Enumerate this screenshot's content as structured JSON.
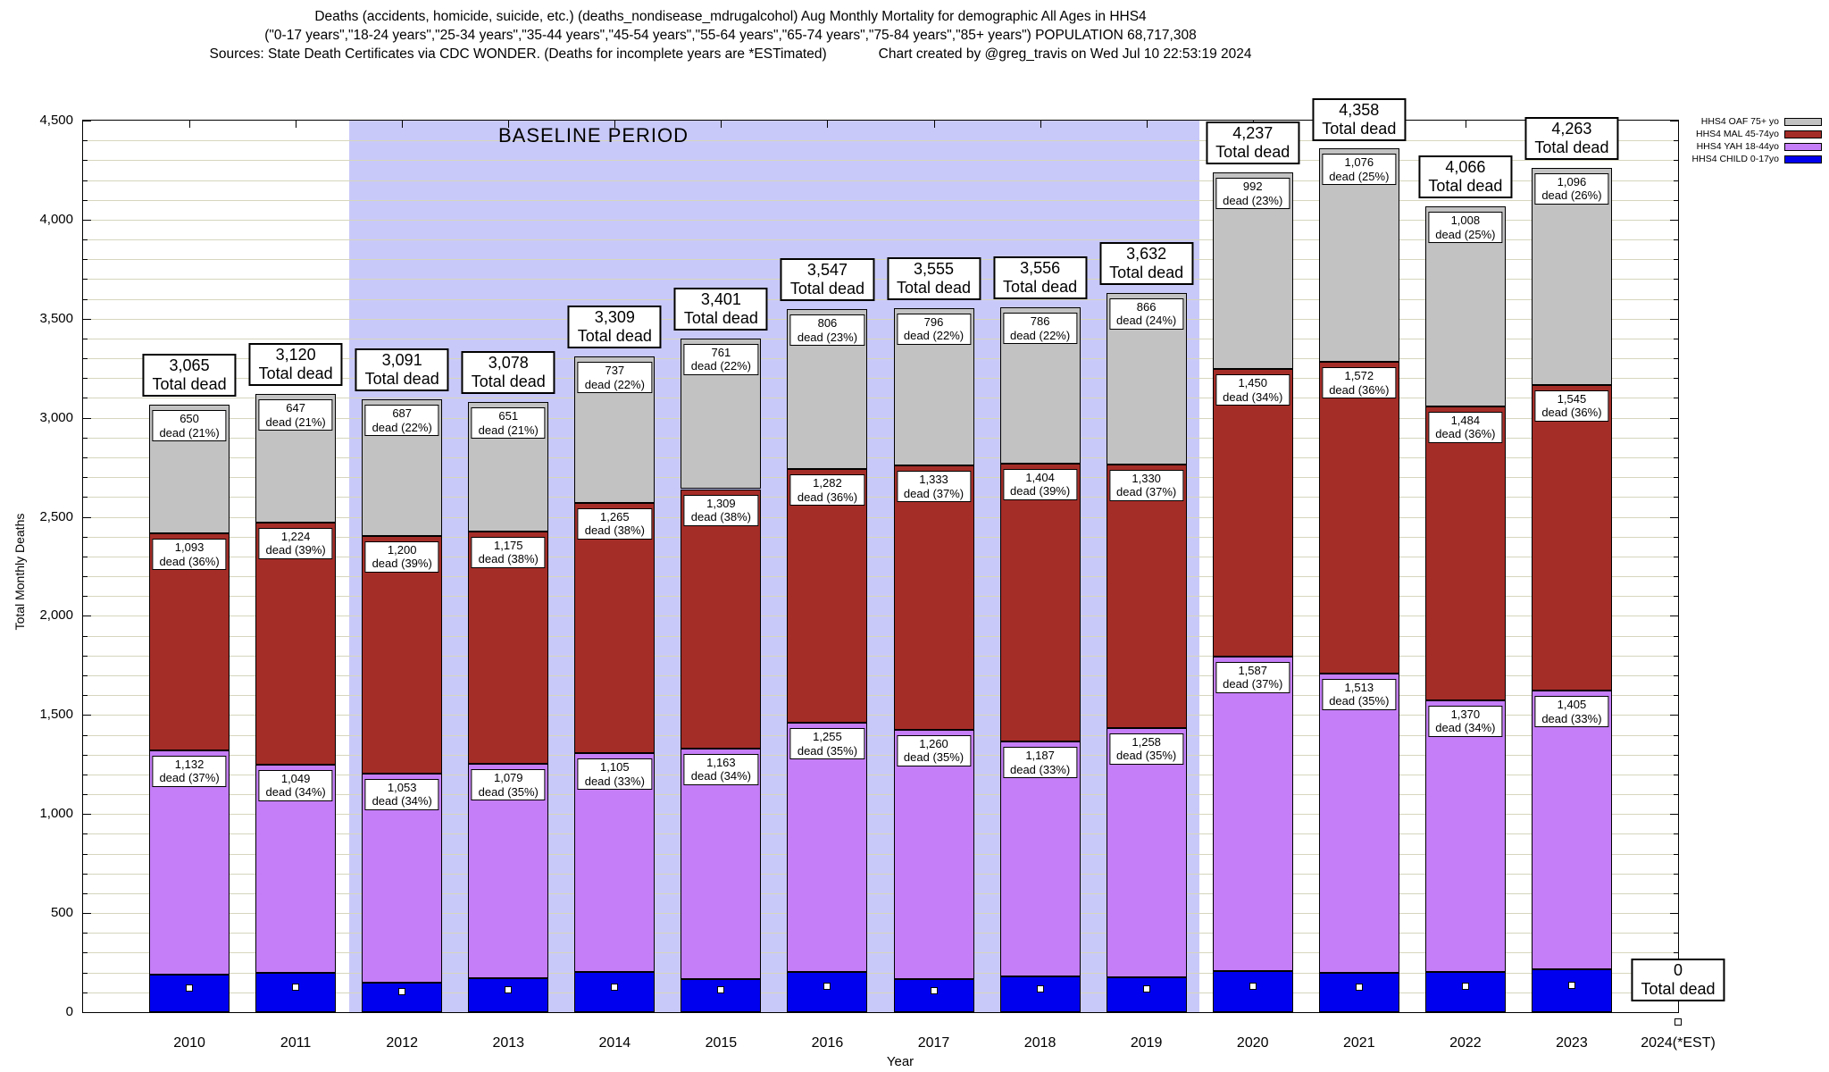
{
  "title": {
    "line1": "Deaths (accidents, homicide, suicide, etc.) (deaths_nondisease_mdrugalcohol) Aug Monthly Mortality for demographic All Ages in HHS4",
    "line2": "(\"0-17 years\",\"18-24 years\",\"25-34 years\",\"35-44 years\",\"45-54 years\",\"55-64 years\",\"65-74 years\",\"75-84 years\",\"85+ years\") POPULATION 68,717,308",
    "line3_left": "Sources: State Death Certificates via CDC WONDER. (Deaths for incomplete years are *ESTimated)",
    "line3_right": "Chart created by @greg_travis on Wed Jul 10 22:53:19 2024"
  },
  "axes": {
    "y_label": "Total Monthly Deaths",
    "x_label": "Year"
  },
  "legend": {
    "items": [
      {
        "label": "HHS4 OAF 75+ yo",
        "color": "#c2c2c2"
      },
      {
        "label": "HHS4 MAL 45-74yo",
        "color": "#a52d28"
      },
      {
        "label": "HHS4 YAH 18-44yo",
        "color": "#c57ef7"
      },
      {
        "label": "HHS4 CHILD 0-17yo",
        "color": "#0000ee"
      }
    ]
  },
  "baseline": {
    "label": "BASELINE PERIOD"
  },
  "chart_data": {
    "type": "bar",
    "stacked": true,
    "title": "Aug Monthly Mortality for demographic All Ages in HHS4",
    "xlabel": "Year",
    "ylabel": "Total Monthly Deaths",
    "ylim": [
      0,
      4500
    ],
    "y_tick_step": 500,
    "grid_step": 100,
    "x_domain": [
      2009,
      2024
    ],
    "grid": true,
    "legend_position": "top-right",
    "categories": [
      "2010",
      "2011",
      "2012",
      "2013",
      "2014",
      "2015",
      "2016",
      "2017",
      "2018",
      "2019",
      "2020",
      "2021",
      "2022",
      "2023",
      "2024(*EST)"
    ],
    "years": [
      2010,
      2011,
      2012,
      2013,
      2014,
      2015,
      2016,
      2017,
      2018,
      2019,
      2020,
      2021,
      2022,
      2023,
      2024
    ],
    "series": [
      {
        "name": "HHS4 CHILD 0-17yo",
        "color": "#0000ee",
        "labeled": false,
        "values": [
          190,
          200,
          151,
          173,
          202,
          168,
          204,
          166,
          179,
          178,
          208,
          197,
          204,
          217,
          0
        ],
        "pct": [
          null,
          null,
          null,
          null,
          null,
          null,
          null,
          null,
          null,
          null,
          null,
          null,
          null,
          null,
          null
        ]
      },
      {
        "name": "HHS4 YAH 18-44yo",
        "color": "#c57ef7",
        "labeled": true,
        "values": [
          1132,
          1049,
          1053,
          1079,
          1105,
          1163,
          1255,
          1260,
          1187,
          1258,
          1587,
          1513,
          1370,
          1405,
          0
        ],
        "pct": [
          37,
          34,
          34,
          35,
          33,
          34,
          35,
          35,
          33,
          35,
          37,
          35,
          34,
          33,
          null
        ]
      },
      {
        "name": "HHS4 MAL 45-74yo",
        "color": "#a52d28",
        "labeled": true,
        "values": [
          1093,
          1224,
          1200,
          1175,
          1265,
          1309,
          1282,
          1333,
          1404,
          1330,
          1450,
          1572,
          1484,
          1545,
          0
        ],
        "pct": [
          36,
          39,
          39,
          38,
          38,
          38,
          36,
          37,
          39,
          37,
          34,
          36,
          36,
          36,
          null
        ]
      },
      {
        "name": "HHS4 OAF 75+ yo",
        "color": "#c2c2c2",
        "labeled": true,
        "values": [
          650,
          647,
          687,
          651,
          737,
          761,
          806,
          796,
          786,
          866,
          992,
          1076,
          1008,
          1096,
          0
        ],
        "pct": [
          21,
          21,
          22,
          21,
          22,
          22,
          23,
          22,
          22,
          24,
          23,
          25,
          25,
          26,
          null
        ]
      }
    ],
    "totals": [
      3065,
      3120,
      3091,
      3078,
      3309,
      3401,
      3547,
      3555,
      3556,
      3632,
      4237,
      4358,
      4066,
      4263,
      0
    ],
    "total_label_suffix": "Total dead",
    "segment_label_word": "dead",
    "baseline_band": {
      "from": 2011.5,
      "to": 2019.5,
      "color": "#c9c9f9",
      "label": "BASELINE PERIOD"
    }
  }
}
